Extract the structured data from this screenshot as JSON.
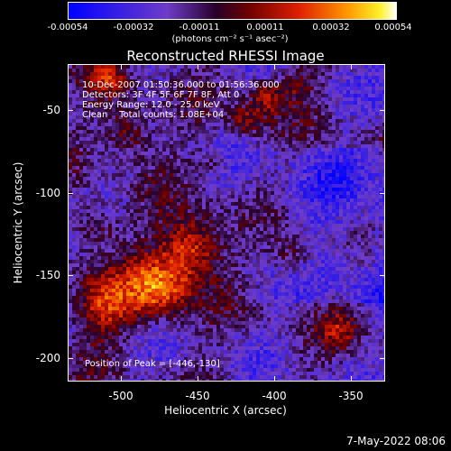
{
  "colorbar": {
    "ticks": [
      "-0.00054",
      "-0.00032",
      "-0.00011",
      "0.00011",
      "0.00032",
      "0.00054"
    ],
    "unit_label": "(photons cm⁻² s⁻¹ asec⁻²)"
  },
  "title": "Reconstructed RHESSI Image",
  "overlay": {
    "time_range": "10-Dec-2007 01:50:36.000 to 01:56:36.000",
    "detectors": "Detectors: 3F 4F 5F 6F 7F 8F, Att 0",
    "energy_range": "Energy Range: 12.0 - 25.0 keV",
    "method_counts": "Clean    Total counts: 1.08E+04",
    "peak_position": "Position of Peak = [-446,-130]"
  },
  "axes": {
    "xlabel": "Heliocentric X (arcsec)",
    "ylabel": "Heliocentric Y (arcsec)",
    "xticks": [
      "-500",
      "-450",
      "-400",
      "-350"
    ],
    "yticks": [
      "-50",
      "-100",
      "-150",
      "-200"
    ]
  },
  "footer": "7-May-2022 08:06"
}
